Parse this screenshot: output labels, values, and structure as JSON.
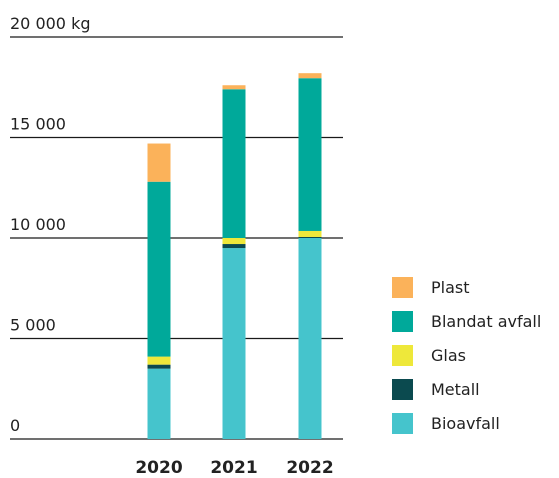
{
  "chart_data": {
    "type": "bar",
    "stacked": true,
    "categories": [
      "2020",
      "2021",
      "2022"
    ],
    "series": [
      {
        "name": "Bioavfall",
        "color": "#45c4cc",
        "values": [
          3500,
          9500,
          10000
        ]
      },
      {
        "name": "Metall",
        "color": "#0b4a4f",
        "values": [
          200,
          200,
          50
        ]
      },
      {
        "name": "Glas",
        "color": "#eee83a",
        "values": [
          400,
          300,
          300
        ]
      },
      {
        "name": "Blandat avfall",
        "color": "#00a99a",
        "values": [
          8700,
          7400,
          7600
        ]
      },
      {
        "name": "Plast",
        "color": "#fbb25a",
        "values": [
          1900,
          200,
          250
        ]
      }
    ],
    "y_ticks": [
      {
        "value": 0,
        "label": "0"
      },
      {
        "value": 5000,
        "label": "5 000"
      },
      {
        "value": 10000,
        "label": "10 000"
      },
      {
        "value": 15000,
        "label": "15 000"
      },
      {
        "value": 20000,
        "label": "20 000 kg"
      }
    ],
    "ylim": [
      0,
      20000
    ],
    "grid": true,
    "legend_placement": "right",
    "legend_order": [
      "Plast",
      "Blandat avfall",
      "Glas",
      "Metall",
      "Bioavfall"
    ]
  }
}
